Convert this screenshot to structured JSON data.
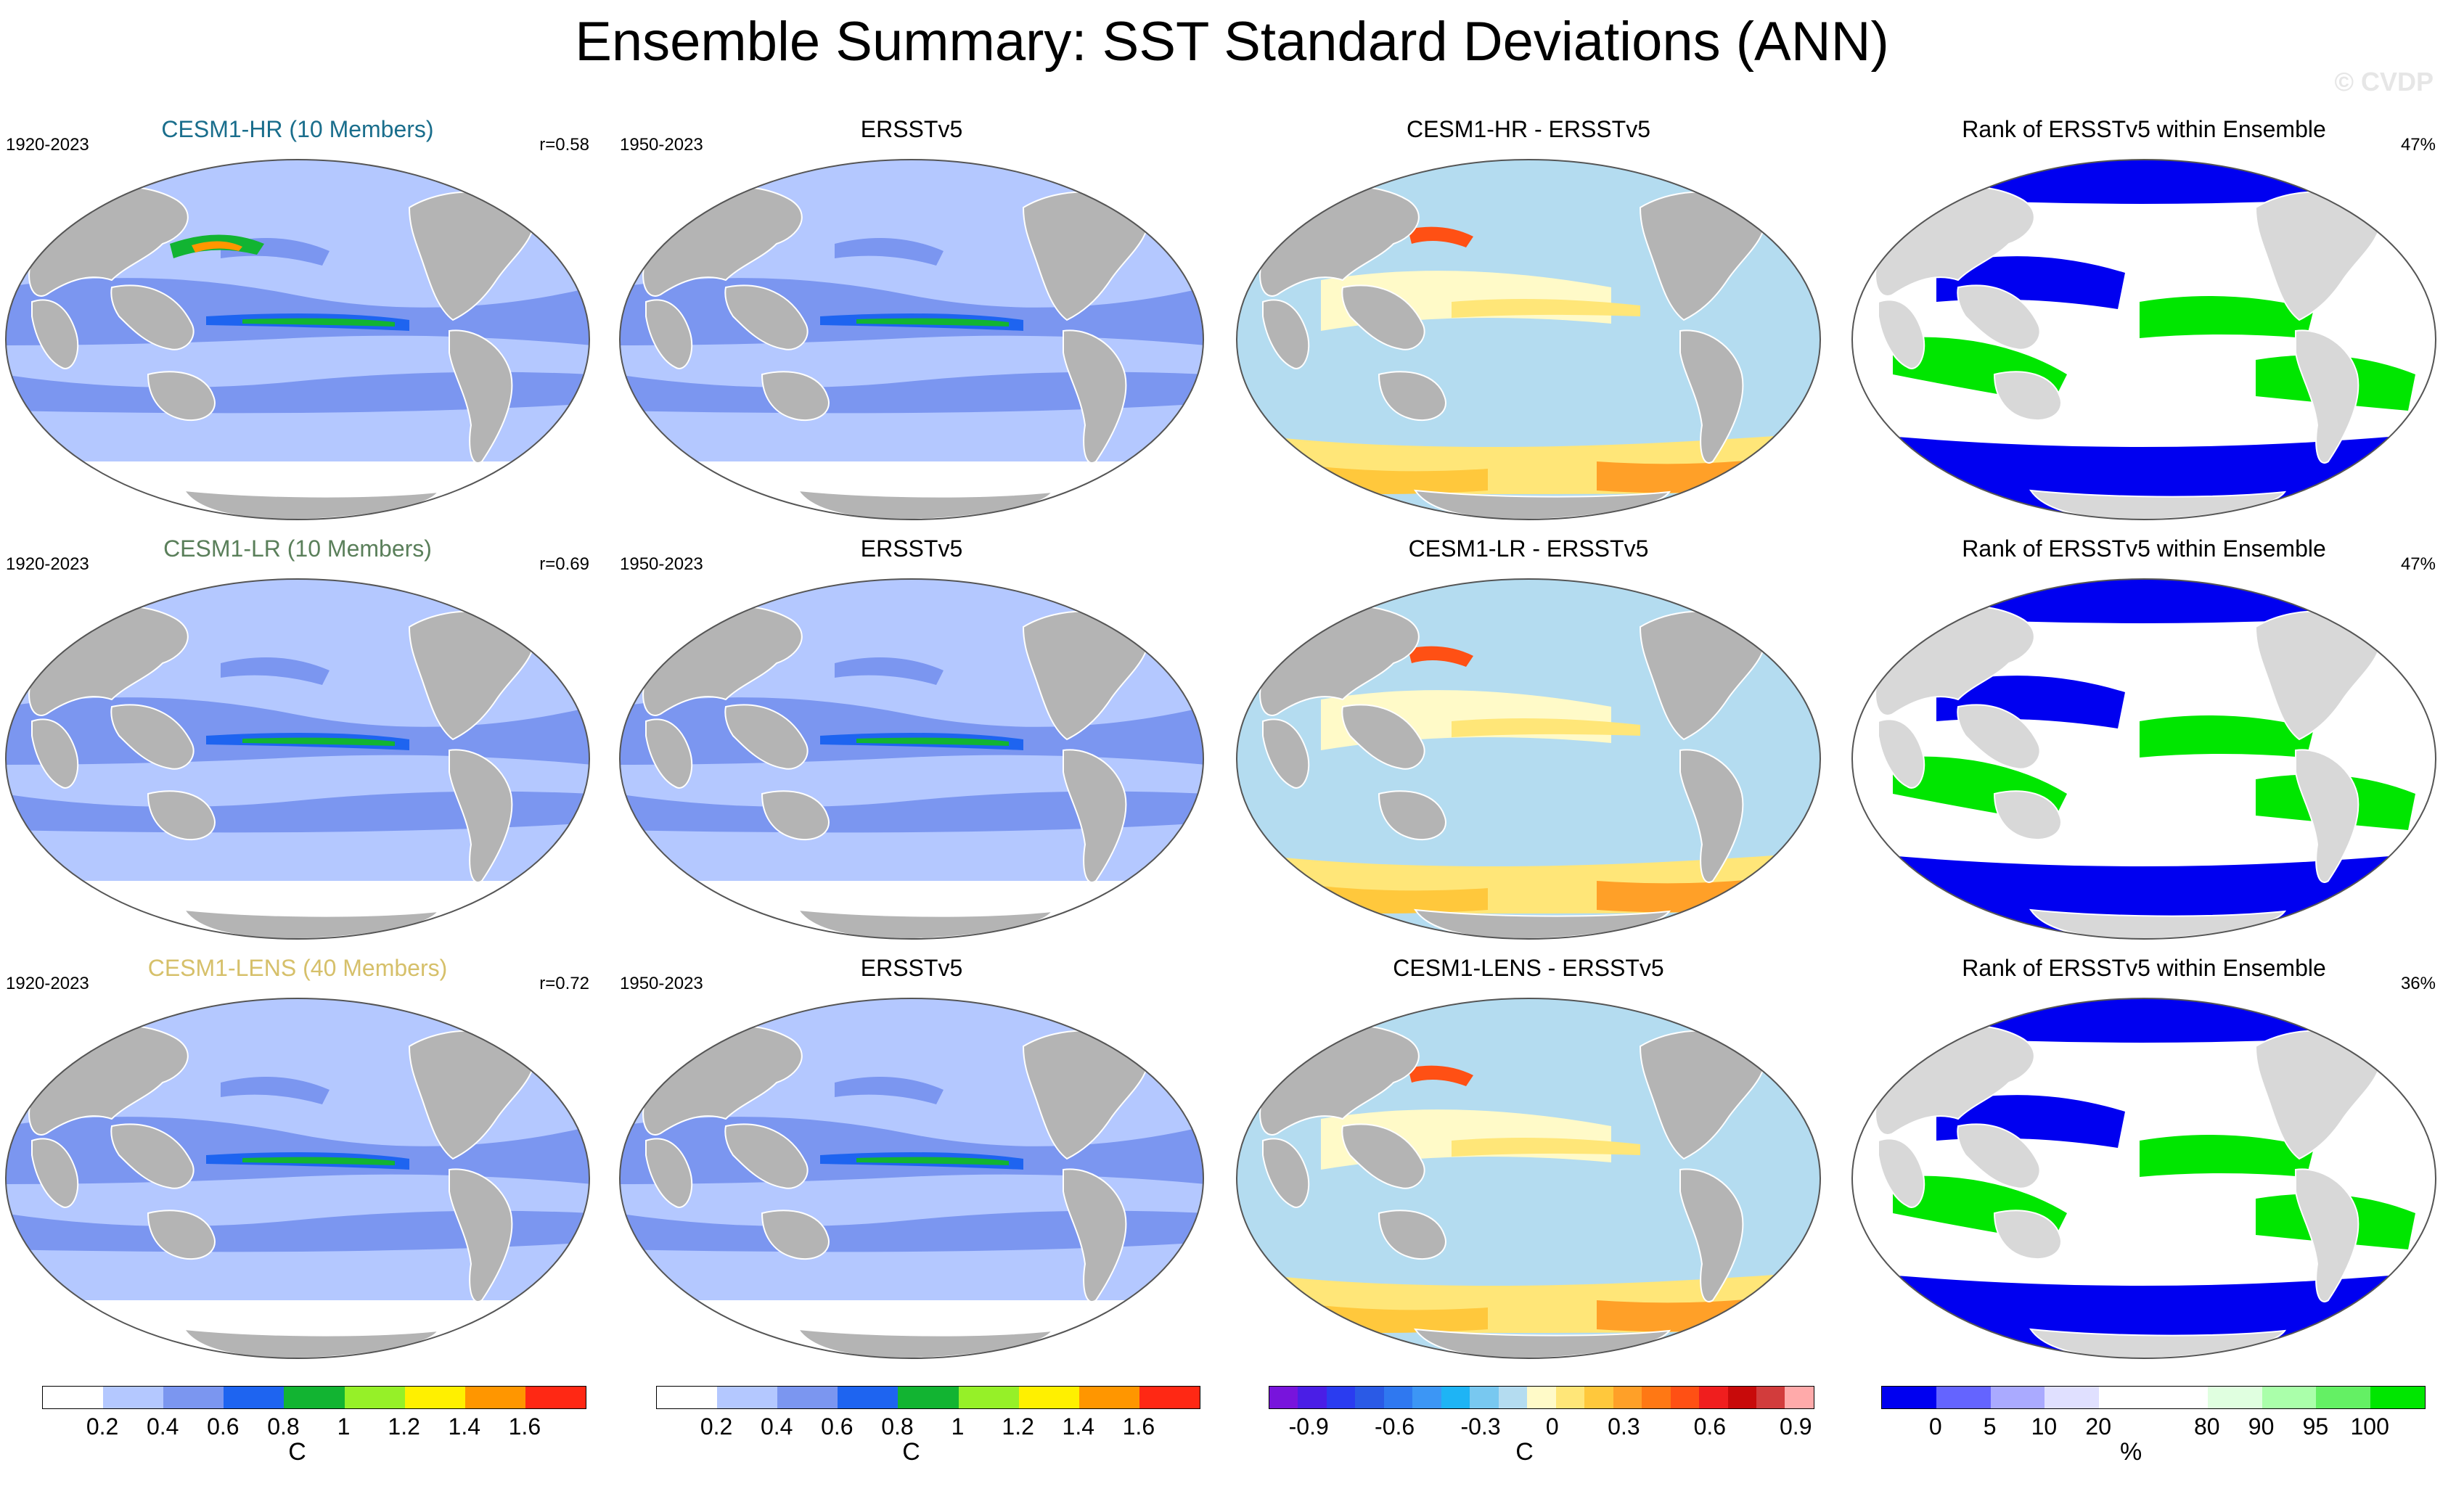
{
  "title": "Ensemble Summary: SST Standard Deviations (ANN)",
  "watermark": "© CVDP",
  "rows": [
    {
      "model": {
        "title": "CESM1-HR (10 Members)",
        "title_color": "#1a6e8c",
        "period": "1920-2023",
        "corr": "r=0.58"
      },
      "obs": {
        "title": "ERSSTv5",
        "period": "1950-2023"
      },
      "diff": {
        "title": "CESM1-HR - ERSSTv5"
      },
      "rank": {
        "title": "Rank of ERSSTv5 within Ensemble",
        "pct": "47%"
      }
    },
    {
      "model": {
        "title": "CESM1-LR (10 Members)",
        "title_color": "#5a7f5a",
        "period": "1920-2023",
        "corr": "r=0.69"
      },
      "obs": {
        "title": "ERSSTv5",
        "period": "1950-2023"
      },
      "diff": {
        "title": "CESM1-LR - ERSSTv5"
      },
      "rank": {
        "title": "Rank of ERSSTv5 within Ensemble",
        "pct": "47%"
      }
    },
    {
      "model": {
        "title": "CESM1-LENS (40 Members)",
        "title_color": "#d6c06a",
        "period": "1920-2023",
        "corr": "r=0.72"
      },
      "obs": {
        "title": "ERSSTv5",
        "period": "1950-2023"
      },
      "diff": {
        "title": "CESM1-LENS - ERSSTv5"
      },
      "rank": {
        "title": "Rank of ERSSTv5 within Ensemble",
        "pct": "36%"
      }
    }
  ],
  "colorbars": {
    "std1": {
      "colors": [
        "#ffffff",
        "#b4c8ff",
        "#7b96f0",
        "#1e64f0",
        "#12b432",
        "#96f028",
        "#fff000",
        "#ff9600",
        "#ff2814"
      ],
      "ticks": [
        "0.2",
        "0.4",
        "0.6",
        "0.8",
        "1",
        "1.2",
        "1.4",
        "1.6"
      ],
      "unit": "C"
    },
    "std2": {
      "colors": [
        "#ffffff",
        "#b4c8ff",
        "#7b96f0",
        "#1e64f0",
        "#12b432",
        "#96f028",
        "#fff000",
        "#ff9600",
        "#ff2814"
      ],
      "ticks": [
        "0.2",
        "0.4",
        "0.6",
        "0.8",
        "1",
        "1.2",
        "1.4",
        "1.6"
      ],
      "unit": "C"
    },
    "diff": {
      "colors": [
        "#7814dc",
        "#4a1ee6",
        "#2a3cf0",
        "#2a5ae6",
        "#2f78f0",
        "#3c96f5",
        "#1eb4f5",
        "#78c8f0",
        "#b4dcf0",
        "#fffac8",
        "#ffe678",
        "#ffc83c",
        "#ffa028",
        "#ff7814",
        "#ff5014",
        "#f01e1e",
        "#c80a0a",
        "#d23c3c",
        "#ffaaaa"
      ],
      "ticks": [
        "-0.9",
        "-0.6",
        "-0.3",
        "0",
        "0.3",
        "0.6",
        "0.9"
      ],
      "unit": "C"
    },
    "rank": {
      "colors": [
        "#0000f0",
        "#6464ff",
        "#aaaaff",
        "#e0e0ff",
        "#ffffff",
        "#ffffff",
        "#e0ffe0",
        "#aaffaa",
        "#64f064",
        "#00e600"
      ],
      "ticks": [
        "0",
        "5",
        "10",
        "20",
        "80",
        "90",
        "95",
        "100"
      ],
      "unit": "%"
    }
  }
}
